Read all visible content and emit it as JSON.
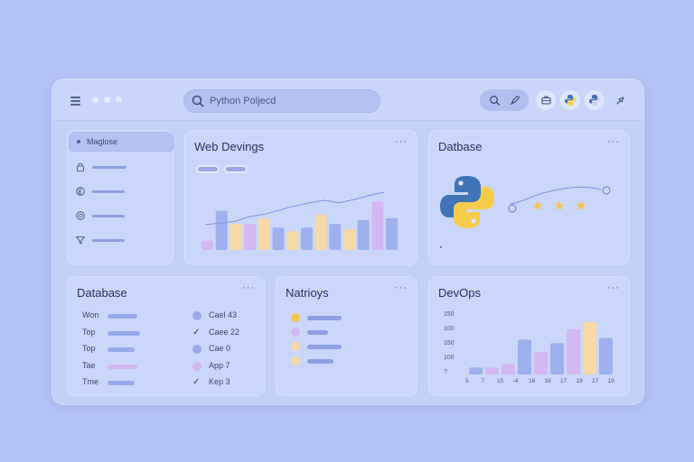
{
  "search": {
    "text": "Python Poljecd"
  },
  "cards": {
    "web": {
      "title": "Web Devings",
      "more": "···",
      "bars": [
        {
          "color": "#d3b8f3",
          "value": 10
        },
        {
          "color": "#9fb0ee",
          "value": 42
        },
        {
          "color": "#f6d9a5",
          "value": 28
        },
        {
          "color": "#d3b8f3",
          "value": 28
        },
        {
          "color": "#f6d9a5",
          "value": 34
        },
        {
          "color": "#9fb0ee",
          "value": 24
        },
        {
          "color": "#f6d9a5",
          "value": 20
        },
        {
          "color": "#9fb0ee",
          "value": 24
        },
        {
          "color": "#f6d9a5",
          "value": 38
        },
        {
          "color": "#9fb0ee",
          "value": 28
        },
        {
          "color": "#f6d9a5",
          "value": 22
        },
        {
          "color": "#9fb0ee",
          "value": 32
        },
        {
          "color": "#d3b8f3",
          "value": 52
        },
        {
          "color": "#9fb0ee",
          "value": 34
        }
      ],
      "line": [
        20,
        22,
        24,
        30,
        33,
        38,
        43,
        47,
        50,
        47,
        51,
        56,
        60
      ]
    },
    "database_top": {
      "title": "Datbase",
      "more": "···",
      "stars": 3
    },
    "database": {
      "title": "Database",
      "more": "···",
      "rows": [
        {
          "label": "Won",
          "bar_color": "#98a9ec",
          "bar_len": 0.82,
          "mark": "circle",
          "mark_color": "#98a9ec",
          "text": "Cael 43"
        },
        {
          "label": "Top",
          "bar_color": "#98a9ec",
          "bar_len": 0.9,
          "mark": "check",
          "mark_color": "#2d3a6b",
          "text": "Caee 22"
        },
        {
          "label": "Top",
          "bar_color": "#98a9ec",
          "bar_len": 0.75,
          "mark": "circle",
          "mark_color": "#98a9ec",
          "text": "Cae 0"
        },
        {
          "label": "Tae",
          "bar_color": "#d3b8f3",
          "bar_len": 0.82,
          "mark": "circle",
          "mark_color": "#d3b8f3",
          "text": "App 7"
        },
        {
          "label": "Tme",
          "bar_color": "#98a9ec",
          "bar_len": 0.75,
          "mark": "check",
          "mark_color": "#2d3a6b",
          "text": "Kep 3"
        }
      ]
    },
    "natrioys": {
      "title": "Natrioys",
      "more": "···",
      "rows": [
        {
          "dot_color": "#f5c553",
          "bar_len": 1.0
        },
        {
          "dot_color": "#d3b8f3",
          "bar_len": 0.6
        },
        {
          "dot_color": "#f6d9a5",
          "bar_len": 1.0
        },
        {
          "dot_color": "#f6d9a5",
          "bar_len": 0.75
        }
      ]
    },
    "devops": {
      "title": "DevOps",
      "more": "···",
      "yticks": [
        "150",
        "100",
        "150",
        "100",
        "?"
      ],
      "xticks": [
        "5",
        "7",
        "15",
        "-4",
        "16",
        "16",
        "17",
        "19",
        "17",
        "19"
      ],
      "bars": [
        {
          "color": "#9fb0ee",
          "value": 8
        },
        {
          "color": "#d3b8f3",
          "value": 8
        },
        {
          "color": "#d3b8f3",
          "value": 12
        },
        {
          "color": "#9fb0ee",
          "value": 40
        },
        {
          "color": "#d3b8f3",
          "value": 26
        },
        {
          "color": "#9fb0ee",
          "value": 36
        },
        {
          "color": "#d3b8f3",
          "value": 52
        },
        {
          "color": "#f6d9a5",
          "value": 60
        },
        {
          "color": "#9fb0ee",
          "value": 42
        }
      ]
    }
  },
  "sidebar": {
    "active_label": "Maglose",
    "items": [
      {
        "icon": "lock-icon"
      },
      {
        "icon": "globe-icon"
      },
      {
        "icon": "target-icon"
      },
      {
        "icon": "filter-icon"
      }
    ]
  },
  "colors": {
    "accent": "#98a9ec",
    "yellow": "#f5c553",
    "python_blue": "#3f74b8",
    "python_yellow": "#f7cc49"
  }
}
